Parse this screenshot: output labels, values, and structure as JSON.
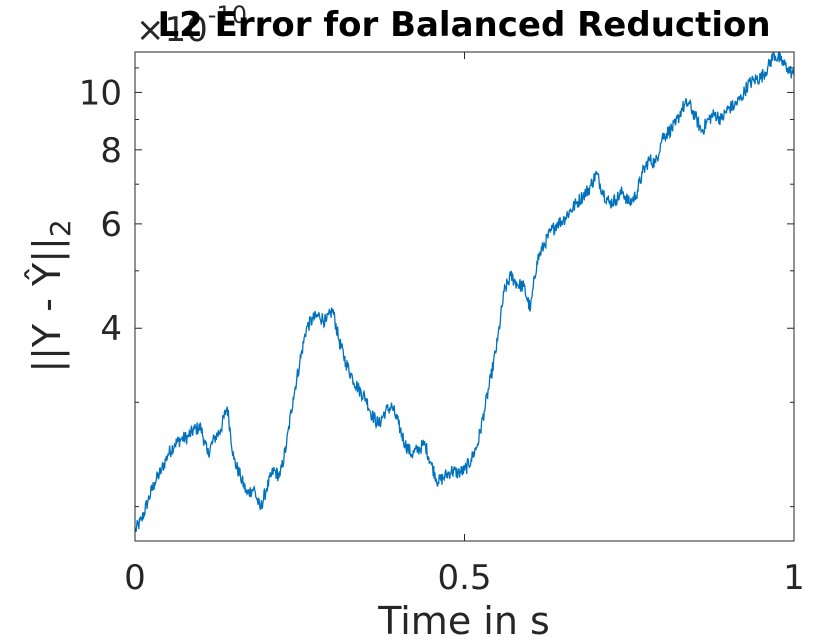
{
  "chart_data": {
    "type": "line",
    "title": "L2 Error for Balanced Reduction",
    "xlabel": "Time in s",
    "ylabel": "||Y - Ŷ||",
    "ylabel_subscript": "2",
    "y_exponent_multiplier": "×10",
    "y_exponent_power": "-10",
    "y_scale": "log",
    "xlim": [
      0,
      1
    ],
    "ylim": [
      1.75,
      11.7
    ],
    "x_ticks": [
      0,
      0.5,
      1
    ],
    "x_tick_labels": [
      "0",
      "0.5",
      "1"
    ],
    "y_ticks": [
      4,
      6,
      8,
      10
    ],
    "y_tick_labels": [
      "4",
      "6",
      "8",
      "10"
    ],
    "y_minor_ticks": [
      2,
      3,
      5,
      7,
      9,
      11
    ],
    "grid": false,
    "line_color": "#0072BD",
    "series": [
      {
        "x": [
          0.0,
          0.01,
          0.02,
          0.03,
          0.04,
          0.05,
          0.06,
          0.07,
          0.08,
          0.09,
          0.1,
          0.11,
          0.12,
          0.13,
          0.14,
          0.15,
          0.16,
          0.17,
          0.18,
          0.19,
          0.2,
          0.21,
          0.22,
          0.23,
          0.24,
          0.25,
          0.26,
          0.27,
          0.28,
          0.29,
          0.3,
          0.31,
          0.32,
          0.33,
          0.34,
          0.35,
          0.36,
          0.37,
          0.38,
          0.39,
          0.4,
          0.41,
          0.42,
          0.43,
          0.44,
          0.45,
          0.46,
          0.47,
          0.48,
          0.49,
          0.5,
          0.51,
          0.52,
          0.53,
          0.54,
          0.55,
          0.56,
          0.57,
          0.58,
          0.59,
          0.6,
          0.61,
          0.62,
          0.63,
          0.64,
          0.65,
          0.66,
          0.67,
          0.68,
          0.69,
          0.7,
          0.71,
          0.72,
          0.73,
          0.74,
          0.75,
          0.76,
          0.77,
          0.78,
          0.79,
          0.8,
          0.81,
          0.82,
          0.83,
          0.84,
          0.85,
          0.86,
          0.87,
          0.88,
          0.89,
          0.9,
          0.91,
          0.92,
          0.93,
          0.94,
          0.95,
          0.96,
          0.97,
          0.98,
          0.99,
          1.0
        ],
        "y": [
          1.82,
          1.9,
          2.05,
          2.2,
          2.3,
          2.45,
          2.55,
          2.6,
          2.62,
          2.7,
          2.72,
          2.45,
          2.6,
          2.7,
          2.95,
          2.4,
          2.25,
          2.1,
          2.15,
          1.98,
          2.15,
          2.3,
          2.25,
          2.55,
          3.05,
          3.5,
          4.0,
          4.15,
          4.2,
          4.1,
          4.3,
          3.8,
          3.5,
          3.3,
          3.15,
          3.05,
          2.85,
          2.75,
          2.9,
          2.95,
          2.75,
          2.55,
          2.45,
          2.5,
          2.55,
          2.35,
          2.2,
          2.25,
          2.3,
          2.28,
          2.3,
          2.4,
          2.55,
          2.9,
          3.3,
          3.8,
          4.6,
          4.9,
          4.75,
          4.7,
          4.3,
          5.2,
          5.5,
          5.8,
          6.0,
          6.1,
          6.3,
          6.5,
          6.7,
          6.9,
          7.3,
          6.8,
          6.5,
          6.6,
          6.8,
          6.5,
          6.7,
          7.3,
          7.7,
          7.6,
          8.4,
          8.6,
          8.8,
          9.4,
          9.6,
          9.1,
          8.6,
          9.0,
          9.2,
          9.0,
          9.4,
          9.5,
          9.8,
          10.3,
          10.5,
          10.6,
          11.0,
          11.6,
          11.3,
          11.0,
          10.7
        ]
      }
    ]
  }
}
